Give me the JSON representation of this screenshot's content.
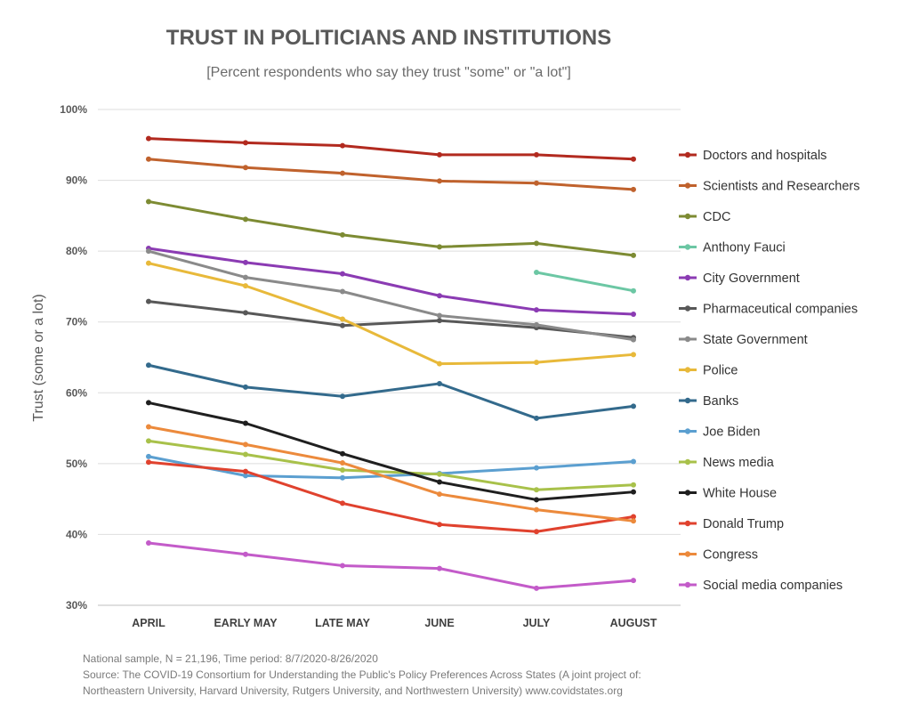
{
  "chart_data": {
    "type": "line",
    "title": "TRUST IN POLITICIANS AND INSTITUTIONS",
    "subtitle": "[Percent respondents who say they trust \"some\" or \"a lot\"]",
    "xlabel": "",
    "ylabel": "Trust (some or a lot)",
    "categories": [
      "APRIL",
      "EARLY MAY",
      "LATE MAY",
      "JUNE",
      "JULY",
      "AUGUST"
    ],
    "ylim": [
      30,
      100
    ],
    "yticks": [
      {
        "value": 30,
        "label": "30%"
      },
      {
        "value": 40,
        "label": "40%"
      },
      {
        "value": 50,
        "label": "50%"
      },
      {
        "value": 60,
        "label": "60%"
      },
      {
        "value": 70,
        "label": "70%"
      },
      {
        "value": 80,
        "label": "80%"
      },
      {
        "value": 90,
        "label": "90%"
      },
      {
        "value": 100,
        "label": "100%"
      }
    ],
    "grid": true,
    "legend_position": "right",
    "series": [
      {
        "name": "Doctors and hospitals",
        "color": "#b22a1f",
        "values": [
          95.9,
          95.3,
          94.9,
          93.6,
          93.6,
          93.0
        ]
      },
      {
        "name": "Scientists and Researchers",
        "color": "#c0622d",
        "values": [
          93.0,
          91.8,
          91.0,
          89.9,
          89.6,
          88.7
        ]
      },
      {
        "name": "CDC",
        "color": "#7d8b33",
        "values": [
          87.0,
          84.5,
          82.3,
          80.6,
          81.1,
          79.4
        ]
      },
      {
        "name": "Anthony Fauci",
        "color": "#6cc7a4",
        "values": [
          null,
          null,
          null,
          null,
          77.0,
          74.4
        ]
      },
      {
        "name": "City Government",
        "color": "#8b3bb3",
        "values": [
          80.4,
          78.4,
          76.8,
          73.7,
          71.7,
          71.1
        ]
      },
      {
        "name": "Pharmaceutical companies",
        "color": "#585858",
        "values": [
          72.9,
          71.3,
          69.5,
          70.2,
          69.2,
          67.8
        ]
      },
      {
        "name": "State Government",
        "color": "#8a8a8a",
        "values": [
          80.0,
          76.3,
          74.3,
          70.9,
          69.6,
          67.5
        ]
      },
      {
        "name": "Police",
        "color": "#e8b93a",
        "values": [
          78.3,
          75.1,
          70.4,
          64.1,
          64.3,
          65.4
        ]
      },
      {
        "name": "Banks",
        "color": "#336a8c",
        "values": [
          63.9,
          60.8,
          59.5,
          61.3,
          56.4,
          58.1
        ]
      },
      {
        "name": "Joe Biden",
        "color": "#5b9fd0",
        "values": [
          51.0,
          48.3,
          48.0,
          48.6,
          49.4,
          50.3
        ]
      },
      {
        "name": "News media",
        "color": "#a8c14a",
        "values": [
          53.2,
          51.3,
          49.1,
          48.5,
          46.3,
          47.0
        ]
      },
      {
        "name": "White House",
        "color": "#1f1f1f",
        "values": [
          58.6,
          55.7,
          51.4,
          47.4,
          44.9,
          46.0
        ]
      },
      {
        "name": "Donald Trump",
        "color": "#e0422e",
        "values": [
          50.2,
          48.9,
          44.4,
          41.4,
          40.4,
          42.5
        ]
      },
      {
        "name": "Congress",
        "color": "#ec8a3c",
        "values": [
          55.2,
          52.7,
          50.1,
          45.7,
          43.5,
          41.9
        ]
      },
      {
        "name": "Social media companies",
        "color": "#c35bc9",
        "values": [
          38.8,
          37.2,
          35.6,
          35.2,
          32.4,
          33.5
        ]
      }
    ]
  },
  "footnote": {
    "line1": "National sample, N = 21,196, Time period: 8/7/2020-8/26/2020",
    "line2": "Source: The COVID-19 Consortium for Understanding the Public's Policy Preferences Across States (A joint project of:",
    "line3": "Northeastern University, Harvard University, Rutgers University, and Northwestern University) www.covidstates.org"
  }
}
